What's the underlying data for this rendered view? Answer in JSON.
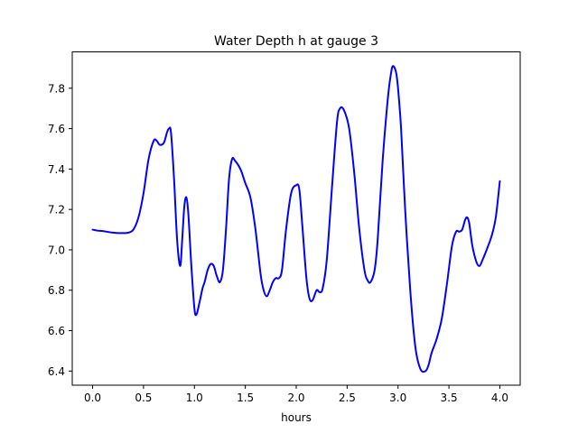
{
  "chart_data": {
    "type": "line",
    "title": "Water Depth h at gauge 3",
    "xlabel": "hours",
    "ylabel": "",
    "xlim": [
      -0.2,
      4.2
    ],
    "ylim": [
      6.33,
      7.98
    ],
    "x_ticks": [
      0.0,
      0.5,
      1.0,
      1.5,
      2.0,
      2.5,
      3.0,
      3.5,
      4.0
    ],
    "x_tick_labels": [
      "0.0",
      "0.5",
      "1.0",
      "1.5",
      "2.0",
      "2.5",
      "3.0",
      "3.5",
      "4.0"
    ],
    "y_ticks": [
      6.4,
      6.6,
      6.8,
      7.0,
      7.2,
      7.4,
      7.6,
      7.8
    ],
    "y_tick_labels": [
      "6.4",
      "6.6",
      "6.8",
      "7.0",
      "7.2",
      "7.4",
      "7.6",
      "7.8"
    ],
    "grid": false,
    "series": [
      {
        "color": "#0000ff",
        "x": [
          0.0,
          0.05,
          0.1,
          0.2,
          0.3,
          0.35,
          0.4,
          0.45,
          0.5,
          0.55,
          0.6,
          0.63,
          0.66,
          0.7,
          0.73,
          0.75,
          0.77,
          0.8,
          0.83,
          0.86,
          0.88,
          0.9,
          0.92,
          0.94,
          0.97,
          1.0,
          1.02,
          1.05,
          1.08,
          1.1,
          1.13,
          1.16,
          1.19,
          1.22,
          1.25,
          1.28,
          1.31,
          1.34,
          1.37,
          1.4,
          1.43,
          1.46,
          1.5,
          1.55,
          1.6,
          1.65,
          1.68,
          1.71,
          1.74,
          1.77,
          1.8,
          1.83,
          1.86,
          1.9,
          1.95,
          2.0,
          2.03,
          2.06,
          2.1,
          2.13,
          2.16,
          2.2,
          2.23,
          2.26,
          2.3,
          2.35,
          2.4,
          2.43,
          2.47,
          2.52,
          2.57,
          2.62,
          2.67,
          2.7,
          2.73,
          2.77,
          2.8,
          2.85,
          2.9,
          2.93,
          2.95,
          2.98,
          3.0,
          3.03,
          3.07,
          3.12,
          3.17,
          3.22,
          3.27,
          3.3,
          3.33,
          3.38,
          3.43,
          3.48,
          3.53,
          3.57,
          3.6,
          3.63,
          3.66,
          3.68,
          3.7,
          3.73,
          3.77,
          3.8,
          3.83,
          3.87,
          3.92,
          3.96,
          4.0
        ],
        "y": [
          7.1,
          7.095,
          7.093,
          7.085,
          7.083,
          7.085,
          7.1,
          7.16,
          7.28,
          7.45,
          7.54,
          7.54,
          7.52,
          7.53,
          7.58,
          7.6,
          7.58,
          7.35,
          7.05,
          6.92,
          7.05,
          7.21,
          7.26,
          7.18,
          6.92,
          6.71,
          6.68,
          6.74,
          6.81,
          6.84,
          6.9,
          6.93,
          6.92,
          6.87,
          6.84,
          6.9,
          7.1,
          7.35,
          7.45,
          7.44,
          7.42,
          7.39,
          7.33,
          7.26,
          7.1,
          6.88,
          6.8,
          6.77,
          6.8,
          6.84,
          6.86,
          6.86,
          6.9,
          7.1,
          7.28,
          7.32,
          7.3,
          7.12,
          6.86,
          6.76,
          6.75,
          6.8,
          6.79,
          6.81,
          6.95,
          7.3,
          7.63,
          7.7,
          7.69,
          7.6,
          7.38,
          7.1,
          6.9,
          6.85,
          6.84,
          6.9,
          7.05,
          7.45,
          7.75,
          7.87,
          7.91,
          7.88,
          7.8,
          7.6,
          7.2,
          6.8,
          6.52,
          6.41,
          6.4,
          6.43,
          6.49,
          6.56,
          6.66,
          6.83,
          7.02,
          7.09,
          7.09,
          7.1,
          7.15,
          7.16,
          7.13,
          7.02,
          6.94,
          6.92,
          6.95,
          7.0,
          7.07,
          7.16,
          7.34
        ]
      }
    ]
  }
}
